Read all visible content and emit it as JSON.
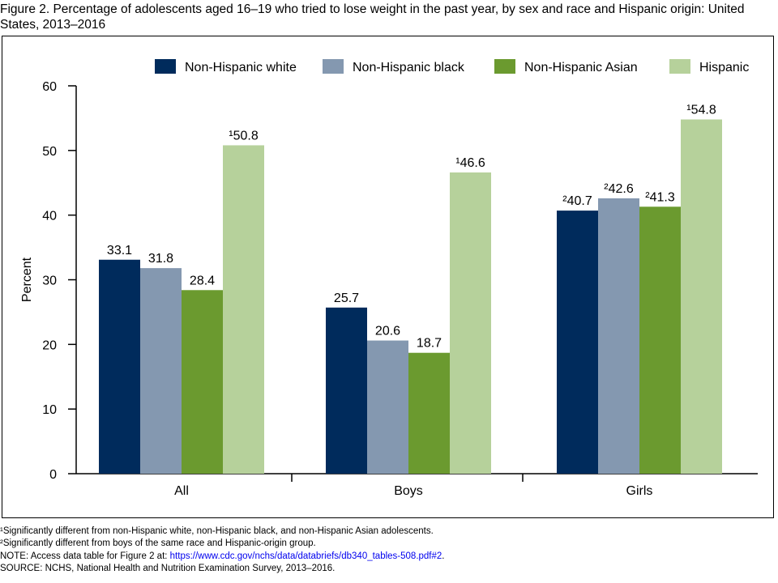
{
  "title": "Figure 2. Percentage of adolescents aged 16–19 who tried to lose weight in the past year, by sex and race and Hispanic origin: United States, 2013–2016",
  "chart_data": {
    "type": "bar",
    "ylabel": "Percent",
    "xlabel": "",
    "ylim": [
      0,
      60
    ],
    "yticks": [
      0,
      10,
      20,
      30,
      40,
      50,
      60
    ],
    "categories": [
      "All",
      "Boys",
      "Girls"
    ],
    "legend_position": "top",
    "grid": false,
    "series": [
      {
        "name": "Non-Hispanic white",
        "color": "#002b5c",
        "values": [
          33.1,
          25.7,
          40.7
        ],
        "labels": [
          "33.1",
          "25.7",
          "²40.7"
        ]
      },
      {
        "name": "Non-Hispanic black",
        "color": "#8498b0",
        "values": [
          31.8,
          20.6,
          42.6
        ],
        "labels": [
          "31.8",
          "20.6",
          "²42.6"
        ]
      },
      {
        "name": "Non-Hispanic Asian",
        "color": "#6b9a2f",
        "values": [
          28.4,
          18.7,
          41.3
        ],
        "labels": [
          "28.4",
          "18.7",
          "²41.3"
        ]
      },
      {
        "name": "Hispanic",
        "color": "#b6d19b",
        "values": [
          50.8,
          46.6,
          54.8
        ],
        "labels": [
          "¹50.8",
          "¹46.6",
          "¹54.8"
        ]
      }
    ]
  },
  "footnotes": {
    "note1": "¹Significantly different from non-Hispanic white, non-Hispanic black, and non-Hispanic Asian adolescents.",
    "note2": "²Significantly different from boys of the same race and Hispanic-origin group.",
    "note_prefix": "NOTE: Access data table for Figure 2 at: ",
    "note_link": "https://www.cdc.gov/nchs/data/databriefs/db340_tables-508.pdf#2",
    "note_suffix": ".",
    "source": "SOURCE: NCHS, National Health and Nutrition Examination Survey, 2013–2016."
  }
}
